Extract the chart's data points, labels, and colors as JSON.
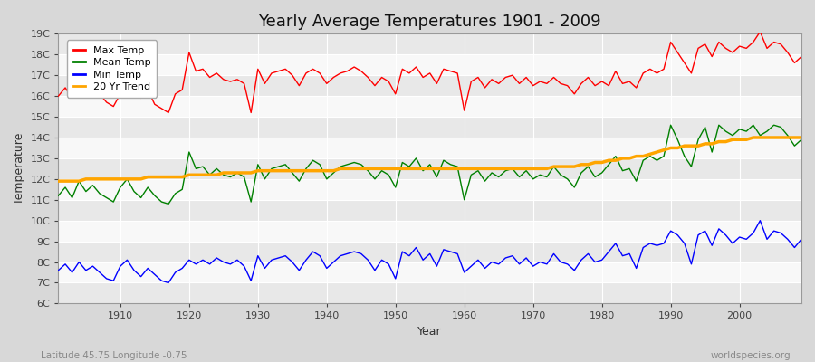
{
  "title": "Yearly Average Temperatures 1901 - 2009",
  "xlabel": "Year",
  "ylabel": "Temperature",
  "bottom_left": "Latitude 45.75 Longitude -0.75",
  "bottom_right": "worldspecies.org",
  "years": [
    1901,
    1902,
    1903,
    1904,
    1905,
    1906,
    1907,
    1908,
    1909,
    1910,
    1911,
    1912,
    1913,
    1914,
    1915,
    1916,
    1917,
    1918,
    1919,
    1920,
    1921,
    1922,
    1923,
    1924,
    1925,
    1926,
    1927,
    1928,
    1929,
    1930,
    1931,
    1932,
    1933,
    1934,
    1935,
    1936,
    1937,
    1938,
    1939,
    1940,
    1941,
    1942,
    1943,
    1944,
    1945,
    1946,
    1947,
    1948,
    1949,
    1950,
    1951,
    1952,
    1953,
    1954,
    1955,
    1956,
    1957,
    1958,
    1959,
    1960,
    1961,
    1962,
    1963,
    1964,
    1965,
    1966,
    1967,
    1968,
    1969,
    1970,
    1971,
    1972,
    1973,
    1974,
    1975,
    1976,
    1977,
    1978,
    1979,
    1980,
    1981,
    1982,
    1983,
    1984,
    1985,
    1986,
    1987,
    1988,
    1989,
    1990,
    1991,
    1992,
    1993,
    1994,
    1995,
    1996,
    1997,
    1998,
    1999,
    2000,
    2001,
    2002,
    2003,
    2004,
    2005,
    2006,
    2007,
    2008,
    2009
  ],
  "max_temp": [
    16.0,
    16.4,
    15.9,
    16.6,
    16.2,
    16.0,
    16.1,
    15.7,
    15.5,
    16.1,
    16.5,
    16.1,
    15.9,
    16.3,
    15.6,
    15.4,
    15.2,
    16.1,
    16.3,
    18.1,
    17.2,
    17.3,
    16.9,
    17.1,
    16.8,
    16.7,
    16.8,
    16.6,
    15.2,
    17.3,
    16.6,
    17.1,
    17.2,
    17.3,
    17.0,
    16.5,
    17.1,
    17.3,
    17.1,
    16.6,
    16.9,
    17.1,
    17.2,
    17.4,
    17.2,
    16.9,
    16.5,
    16.9,
    16.7,
    16.1,
    17.3,
    17.1,
    17.4,
    16.9,
    17.1,
    16.6,
    17.3,
    17.2,
    17.1,
    15.3,
    16.7,
    16.9,
    16.4,
    16.8,
    16.6,
    16.9,
    17.0,
    16.6,
    16.9,
    16.5,
    16.7,
    16.6,
    16.9,
    16.6,
    16.5,
    16.1,
    16.6,
    16.9,
    16.5,
    16.7,
    16.5,
    17.2,
    16.6,
    16.7,
    16.4,
    17.1,
    17.3,
    17.1,
    17.3,
    18.6,
    18.1,
    17.6,
    17.1,
    18.3,
    18.5,
    17.9,
    18.6,
    18.3,
    18.1,
    18.4,
    18.3,
    18.6,
    19.1,
    18.3,
    18.6,
    18.5,
    18.1,
    17.6,
    17.9
  ],
  "mean_temp": [
    11.2,
    11.6,
    11.1,
    11.9,
    11.4,
    11.7,
    11.3,
    11.1,
    10.9,
    11.6,
    12.0,
    11.4,
    11.1,
    11.6,
    11.2,
    10.9,
    10.8,
    11.3,
    11.5,
    13.3,
    12.5,
    12.6,
    12.2,
    12.5,
    12.2,
    12.1,
    12.3,
    12.1,
    10.9,
    12.7,
    12.0,
    12.5,
    12.6,
    12.7,
    12.3,
    11.9,
    12.5,
    12.9,
    12.7,
    12.0,
    12.3,
    12.6,
    12.7,
    12.8,
    12.7,
    12.4,
    12.0,
    12.4,
    12.2,
    11.6,
    12.8,
    12.6,
    13.0,
    12.4,
    12.7,
    12.1,
    12.9,
    12.7,
    12.6,
    11.0,
    12.2,
    12.4,
    11.9,
    12.3,
    12.1,
    12.4,
    12.5,
    12.1,
    12.4,
    12.0,
    12.2,
    12.1,
    12.6,
    12.2,
    12.0,
    11.6,
    12.3,
    12.6,
    12.1,
    12.3,
    12.7,
    13.1,
    12.4,
    12.5,
    11.9,
    12.9,
    13.1,
    12.9,
    13.1,
    14.6,
    13.9,
    13.1,
    12.6,
    13.9,
    14.5,
    13.3,
    14.6,
    14.3,
    14.1,
    14.4,
    14.3,
    14.6,
    14.1,
    14.3,
    14.6,
    14.5,
    14.1,
    13.6,
    13.9
  ],
  "min_temp": [
    7.6,
    7.9,
    7.5,
    8.0,
    7.6,
    7.8,
    7.5,
    7.2,
    7.1,
    7.8,
    8.1,
    7.6,
    7.3,
    7.7,
    7.4,
    7.1,
    7.0,
    7.5,
    7.7,
    8.1,
    7.9,
    8.1,
    7.9,
    8.2,
    8.0,
    7.9,
    8.1,
    7.8,
    7.1,
    8.3,
    7.7,
    8.1,
    8.2,
    8.3,
    8.0,
    7.6,
    8.1,
    8.5,
    8.3,
    7.7,
    8.0,
    8.3,
    8.4,
    8.5,
    8.4,
    8.1,
    7.6,
    8.1,
    7.9,
    7.2,
    8.5,
    8.3,
    8.7,
    8.1,
    8.4,
    7.8,
    8.6,
    8.5,
    8.4,
    7.5,
    7.8,
    8.1,
    7.7,
    8.0,
    7.9,
    8.2,
    8.3,
    7.9,
    8.2,
    7.8,
    8.0,
    7.9,
    8.4,
    8.0,
    7.9,
    7.6,
    8.1,
    8.4,
    8.0,
    8.1,
    8.5,
    8.9,
    8.3,
    8.4,
    7.7,
    8.7,
    8.9,
    8.8,
    8.9,
    9.5,
    9.3,
    8.9,
    7.9,
    9.3,
    9.5,
    8.8,
    9.6,
    9.3,
    8.9,
    9.2,
    9.1,
    9.4,
    10.0,
    9.1,
    9.5,
    9.4,
    9.1,
    8.7,
    9.1
  ],
  "trend": [
    11.9,
    11.9,
    11.9,
    11.9,
    12.0,
    12.0,
    12.0,
    12.0,
    12.0,
    12.0,
    12.0,
    12.0,
    12.0,
    12.1,
    12.1,
    12.1,
    12.1,
    12.1,
    12.1,
    12.2,
    12.2,
    12.2,
    12.2,
    12.2,
    12.3,
    12.3,
    12.3,
    12.3,
    12.3,
    12.4,
    12.4,
    12.4,
    12.4,
    12.4,
    12.4,
    12.4,
    12.4,
    12.4,
    12.4,
    12.4,
    12.4,
    12.5,
    12.5,
    12.5,
    12.5,
    12.5,
    12.5,
    12.5,
    12.5,
    12.5,
    12.5,
    12.5,
    12.5,
    12.5,
    12.5,
    12.5,
    12.5,
    12.5,
    12.5,
    12.5,
    12.5,
    12.5,
    12.5,
    12.5,
    12.5,
    12.5,
    12.5,
    12.5,
    12.5,
    12.5,
    12.5,
    12.5,
    12.6,
    12.6,
    12.6,
    12.6,
    12.7,
    12.7,
    12.8,
    12.8,
    12.9,
    12.9,
    13.0,
    13.0,
    13.1,
    13.1,
    13.2,
    13.3,
    13.4,
    13.5,
    13.5,
    13.6,
    13.6,
    13.6,
    13.7,
    13.7,
    13.8,
    13.8,
    13.9,
    13.9,
    13.9,
    14.0,
    14.0,
    14.0,
    14.0,
    14.0,
    14.0,
    14.0,
    14.0
  ],
  "ylim": [
    6,
    19
  ],
  "yticks": [
    6,
    7,
    8,
    9,
    10,
    11,
    12,
    13,
    14,
    15,
    16,
    17,
    18,
    19
  ],
  "ytick_labels": [
    "6C",
    "7C",
    "8C",
    "9C",
    "10C",
    "11C",
    "12C",
    "13C",
    "14C",
    "15C",
    "16C",
    "17C",
    "18C",
    "19C"
  ],
  "xlim": [
    1901,
    2009
  ],
  "xticks": [
    1910,
    1920,
    1930,
    1940,
    1950,
    1960,
    1970,
    1980,
    1990,
    2000
  ],
  "max_color": "#ff0000",
  "mean_color": "#008000",
  "min_color": "#0000ff",
  "trend_color": "#ffa500",
  "fig_bg_color": "#d8d8d8",
  "plot_bg_color": "#f8f8f8",
  "grid_color": "#ffffff",
  "band_color_light": "#e8e8e8",
  "band_color_dark": "#f8f8f8",
  "title_fontsize": 13,
  "axis_fontsize": 9,
  "tick_fontsize": 8,
  "linewidth": 1.0,
  "trend_linewidth": 2.5,
  "legend_fontsize": 8
}
